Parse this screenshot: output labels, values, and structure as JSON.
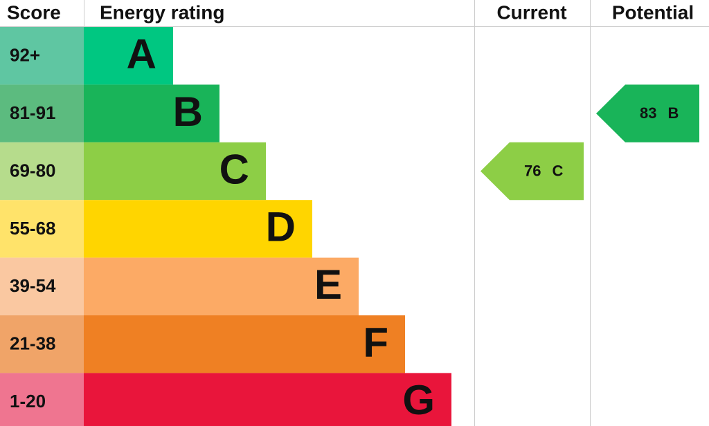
{
  "header": {
    "score": "Score",
    "rating": "Energy rating",
    "current": "Current",
    "potential": "Potential"
  },
  "bands": [
    {
      "score": "92+",
      "letter": "A",
      "color": "#00c781",
      "score_color": "#5fc6a2"
    },
    {
      "score": "81-91",
      "letter": "B",
      "color": "#19b459",
      "score_color": "#5cbb7f"
    },
    {
      "score": "69-80",
      "letter": "C",
      "color": "#8dce46",
      "score_color": "#b6dc8c"
    },
    {
      "score": "55-68",
      "letter": "D",
      "color": "#ffd500",
      "score_color": "#ffe36a"
    },
    {
      "score": "39-54",
      "letter": "E",
      "color": "#fcaa65",
      "score_color": "#fac8a1"
    },
    {
      "score": "21-38",
      "letter": "F",
      "color": "#ef8023",
      "score_color": "#f0a468"
    },
    {
      "score": "1-20",
      "letter": "G",
      "color": "#e9153b",
      "score_color": "#ef7590"
    }
  ],
  "current": {
    "score": 76,
    "letter": "C"
  },
  "potential": {
    "score": 83,
    "letter": "B"
  }
}
